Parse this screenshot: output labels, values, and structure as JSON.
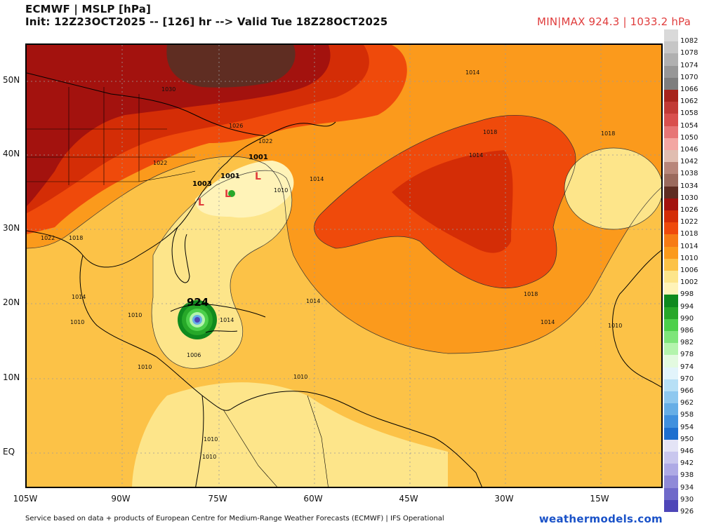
{
  "header": {
    "title": "ECMWF | MSLP [hPa]",
    "init": "Init: 12Z23OCT2025 -- [126] hr --> Valid Tue 18Z28OCT2025",
    "minmax": "MIN|MAX 924.3 | 1033.2 hPa"
  },
  "map": {
    "lon_labels": [
      "105W",
      "90W",
      "75W",
      "60W",
      "45W",
      "30W",
      "15W"
    ],
    "lat_labels": [
      "50N",
      "40N",
      "30N",
      "20N",
      "10N",
      "EQ"
    ],
    "pressure_labels": [
      {
        "text": "1014"
      },
      {
        "text": "1030"
      },
      {
        "text": "1026"
      },
      {
        "text": "1022"
      },
      {
        "text": "1018"
      },
      {
        "text": "1014"
      },
      {
        "text": "1018"
      },
      {
        "text": "1022"
      },
      {
        "text": "1014"
      },
      {
        "text": "1010"
      },
      {
        "text": "1018"
      },
      {
        "text": "1022"
      },
      {
        "text": "1018"
      },
      {
        "text": "1014"
      },
      {
        "text": "1014"
      },
      {
        "text": "1010"
      },
      {
        "text": "1014"
      },
      {
        "text": "1010"
      },
      {
        "text": "1010"
      },
      {
        "text": "1006"
      },
      {
        "text": "1010"
      },
      {
        "text": "1010"
      },
      {
        "text": "1010"
      },
      {
        "text": "1010"
      },
      {
        "text": "1014"
      }
    ],
    "low_markers": [
      {
        "value": "1001",
        "symbol": "L"
      },
      {
        "value": "1001",
        "symbol": "L"
      },
      {
        "value": "1003",
        "symbol": "L"
      }
    ],
    "hurricane": {
      "value": "924"
    }
  },
  "colorbar": {
    "levels": [
      "1082",
      "1078",
      "1074",
      "1070",
      "1066",
      "1062",
      "1058",
      "1054",
      "1050",
      "1046",
      "1042",
      "1038",
      "1034",
      "1030",
      "1026",
      "1022",
      "1018",
      "1014",
      "1010",
      "1006",
      "1002",
      "998",
      "994",
      "990",
      "986",
      "982",
      "978",
      "974",
      "970",
      "966",
      "962",
      "958",
      "954",
      "950",
      "946",
      "942",
      "938",
      "934",
      "930",
      "926"
    ],
    "colors": [
      "#d9d9d9",
      "#c6c6c6",
      "#b0b0b0",
      "#979797",
      "#7e7e7e",
      "#a8241c",
      "#c23a35",
      "#d9504e",
      "#e77676",
      "#f3a6a2",
      "#e0bdb0",
      "#b8867a",
      "#9b6a5d",
      "#5f2d22",
      "#a3120e",
      "#d42d06",
      "#ef4a0b",
      "#f77b14",
      "#fb9a1c",
      "#fcc247",
      "#fde58a",
      "#fff3b8",
      "#0f8a1e",
      "#27a829",
      "#4cd04b",
      "#7ee57a",
      "#b4f4ad",
      "#e3fae0",
      "#e2f4fb",
      "#b7e0f6",
      "#8ec8ef",
      "#66aee6",
      "#3f90de",
      "#1d6fcf",
      "#e4e4f6",
      "#c9c7ee",
      "#aeaae5",
      "#8f8ad8",
      "#6f69c9",
      "#4e46b8"
    ]
  },
  "footer": {
    "credit": "Service based on data + products of European Centre for Medium-Range Weather Forecasts (ECMWF) | IFS Operational",
    "brand": "weathermodels.com"
  }
}
